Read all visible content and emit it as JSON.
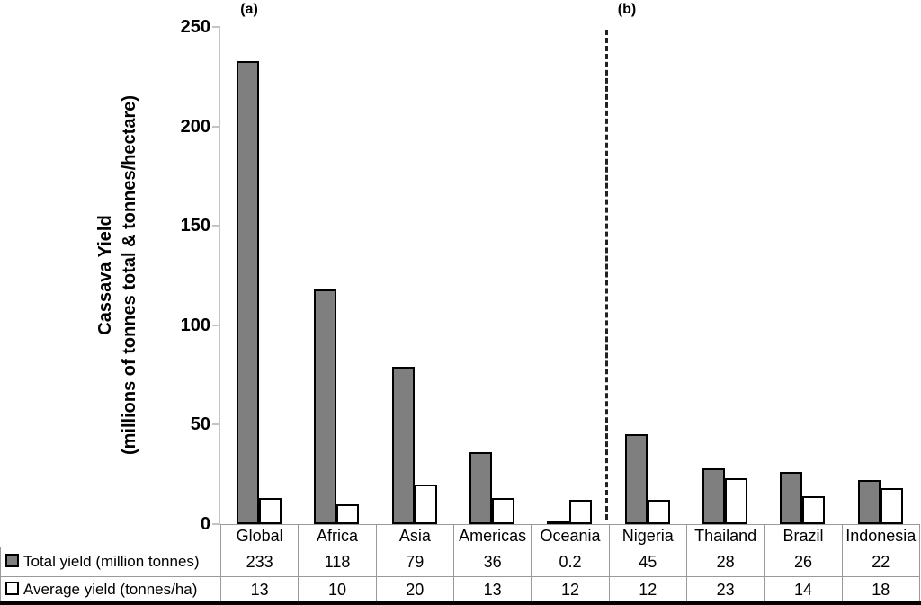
{
  "chart_data": {
    "type": "bar",
    "title": "",
    "ylabel_line1": "Cassava Yield",
    "ylabel_line2": "(millions of tonnes total & tonnes/hectare)",
    "ylim": [
      0,
      250
    ],
    "y_ticks": [
      0,
      50,
      100,
      150,
      200,
      250
    ],
    "grid": "off",
    "legend_position": "table-rows-left",
    "categories": [
      "Global",
      "Africa",
      "Asia",
      "Americas",
      "Oceania",
      "Nigeria",
      "Thailand",
      "Brazil",
      "Indonesia"
    ],
    "series": [
      {
        "name": "Total yield (million tonnes)",
        "marker": "filled-gray-square",
        "fill": "#7f7f7f",
        "values": [
          233,
          118,
          79,
          36,
          0.2,
          45,
          28,
          26,
          22
        ],
        "display_values": [
          "233",
          "118",
          "79",
          "36",
          "0.2",
          "45",
          "28",
          "26",
          "22"
        ]
      },
      {
        "name": "Average yield (tonnes/ha)",
        "marker": "open-white-square",
        "fill": "#ffffff",
        "values": [
          13,
          10,
          20,
          13,
          12,
          12,
          23,
          14,
          18
        ],
        "display_values": [
          "13",
          "10",
          "20",
          "13",
          "12",
          "12",
          "23",
          "14",
          "18"
        ]
      }
    ],
    "panel_labels": [
      "(a)",
      "(b)"
    ],
    "panel_split": {
      "after_category": "Oceania",
      "style": "dashed-vertical-line"
    },
    "colors": {
      "bar_fill_total": "#7f7f7f",
      "bar_fill_average": "#ffffff",
      "bar_border": "#000000",
      "axis_line": "#c4c4c4",
      "table_line": "#9a9a9a",
      "bottom_border": "#000000",
      "text": "#000000"
    }
  }
}
